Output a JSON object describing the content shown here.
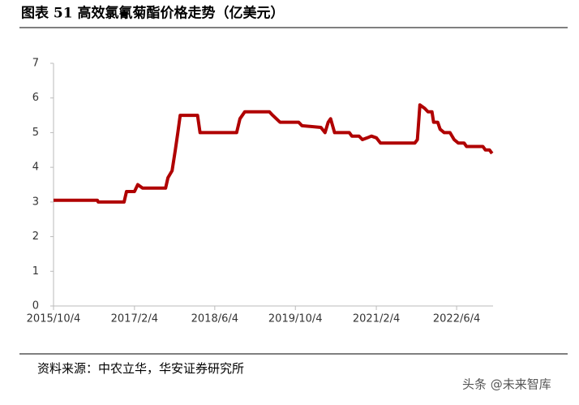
{
  "chart_data": {
    "type": "line",
    "title": "图表 51  高效氯氰菊酯价格走势（亿美元）",
    "source": "资料来源：中农立华，华安证券研究所",
    "watermark": "头条 @未来智库",
    "x": [
      "2015/10/4",
      "2016/6/25",
      "2016/6/30",
      "2016/12/3",
      "2016/12/18",
      "2017/2/4",
      "2017/2/24",
      "2017/3/25",
      "2017/8/11",
      "2017/8/25",
      "2017/9/19",
      "2017/10/9",
      "2017/10/24",
      "2017/11/7",
      "2018/2/20",
      "2018/3/7",
      "2018/10/14",
      "2018/11/3",
      "2018/12/2",
      "2019/4/30",
      "2019/5/20",
      "2019/7/3",
      "2019/10/24",
      "2019/11/13",
      "2020/3/6",
      "2020/3/31",
      "2020/4/19",
      "2020/5/4",
      "2020/5/28",
      "2020/8/25",
      "2020/9/9",
      "2020/10/23",
      "2020/11/12",
      "2020/12/11",
      "2021/1/5",
      "2021/2/4",
      "2021/3/1",
      "2021/9/25",
      "2021/10/10",
      "2021/10/25",
      "2021/11/23",
      "2021/12/13",
      "2022/1/6",
      "2022/1/16",
      "2022/2/10",
      "2022/2/24",
      "2022/3/21",
      "2022/4/25",
      "2022/5/20",
      "2022/6/14",
      "2022/7/19",
      "2022/8/3",
      "2022/11/10",
      "2022/11/25",
      "2022/12/20",
      "2023/1/4"
    ],
    "series": [
      {
        "color": "#b00000",
        "values": [
          3.05,
          3.05,
          3.0,
          3.0,
          3.3,
          3.3,
          3.5,
          3.4,
          3.4,
          3.7,
          3.9,
          4.5,
          5.0,
          5.5,
          5.5,
          5.0,
          5.0,
          5.4,
          5.6,
          5.6,
          5.5,
          5.3,
          5.3,
          5.2,
          5.15,
          5.0,
          5.3,
          5.4,
          5.0,
          5.0,
          4.9,
          4.9,
          4.8,
          4.85,
          4.9,
          4.85,
          4.7,
          4.7,
          4.8,
          5.8,
          5.7,
          5.6,
          5.6,
          5.3,
          5.3,
          5.1,
          5.0,
          5.0,
          4.8,
          4.7,
          4.7,
          4.6,
          4.6,
          4.5,
          4.5,
          4.4
        ]
      }
    ],
    "xlim": [
      "2015/10/4",
      "2023/1/10"
    ],
    "xticks": [
      "2015/10/4",
      "2017/2/4",
      "2018/6/4",
      "2019/10/4",
      "2021/2/4",
      "2022/6/4"
    ],
    "ylim": [
      0,
      7
    ],
    "yticks": [
      0,
      1,
      2,
      3,
      4,
      5,
      6,
      7
    ],
    "grid": false
  }
}
